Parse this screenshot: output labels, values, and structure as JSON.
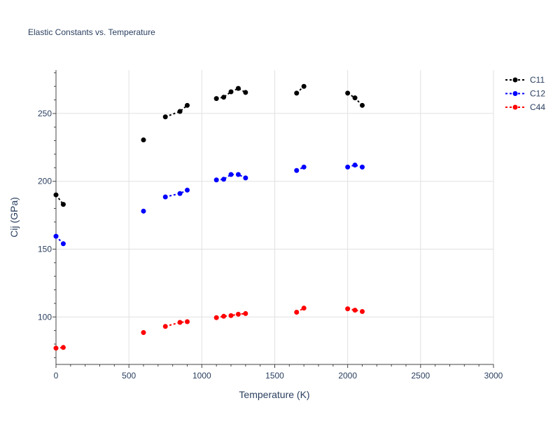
{
  "chart_data": {
    "type": "scatter",
    "title": "Elastic Constants vs. Temperature",
    "xlabel": "Temperature (K)",
    "ylabel": "Cij (GPa)",
    "xlim": [
      0,
      3000
    ],
    "ylim": [
      65,
      282
    ],
    "xticks": [
      0,
      500,
      1000,
      1500,
      2000,
      2500,
      3000
    ],
    "yticks": [
      100,
      150,
      200,
      250
    ],
    "grid": true,
    "legend_position": "top-right",
    "series": [
      {
        "name": "C11",
        "color": "#000000",
        "segments": [
          [
            [
              0,
              190
            ],
            [
              50,
              183
            ]
          ],
          [
            [
              600,
              230.5
            ]
          ],
          [
            [
              750,
              247.5
            ],
            [
              850,
              251.5
            ],
            [
              900,
              256
            ]
          ],
          [
            [
              1100,
              261
            ],
            [
              1150,
              262
            ],
            [
              1200,
              266
            ],
            [
              1250,
              268.5
            ],
            [
              1300,
              265.5
            ]
          ],
          [
            [
              1650,
              265
            ],
            [
              1700,
              270
            ]
          ],
          [
            [
              2000,
              265
            ],
            [
              2050,
              261.5
            ],
            [
              2100,
              256
            ]
          ]
        ]
      },
      {
        "name": "C12",
        "color": "#0000ff",
        "segments": [
          [
            [
              0,
              159.5
            ],
            [
              50,
              154
            ]
          ],
          [
            [
              600,
              178
            ]
          ],
          [
            [
              750,
              188.5
            ],
            [
              850,
              191
            ],
            [
              900,
              193.5
            ]
          ],
          [
            [
              1100,
              201
            ],
            [
              1150,
              201.5
            ],
            [
              1200,
              205
            ],
            [
              1250,
              205
            ],
            [
              1300,
              202.5
            ]
          ],
          [
            [
              1650,
              208
            ],
            [
              1700,
              210.5
            ]
          ],
          [
            [
              2000,
              210.5
            ],
            [
              2050,
              212
            ],
            [
              2100,
              210.5
            ]
          ]
        ]
      },
      {
        "name": "C44",
        "color": "#ff0000",
        "segments": [
          [
            [
              0,
              77
            ],
            [
              50,
              77.5
            ]
          ],
          [
            [
              600,
              88.5
            ]
          ],
          [
            [
              750,
              93
            ],
            [
              850,
              96
            ],
            [
              900,
              96.5
            ]
          ],
          [
            [
              1100,
              99.5
            ],
            [
              1150,
              100.5
            ],
            [
              1200,
              101
            ],
            [
              1250,
              102
            ],
            [
              1300,
              102.5
            ]
          ],
          [
            [
              1650,
              103.5
            ],
            [
              1700,
              106.5
            ]
          ],
          [
            [
              2000,
              106
            ],
            [
              2050,
              105
            ],
            [
              2100,
              104
            ]
          ]
        ]
      }
    ]
  }
}
